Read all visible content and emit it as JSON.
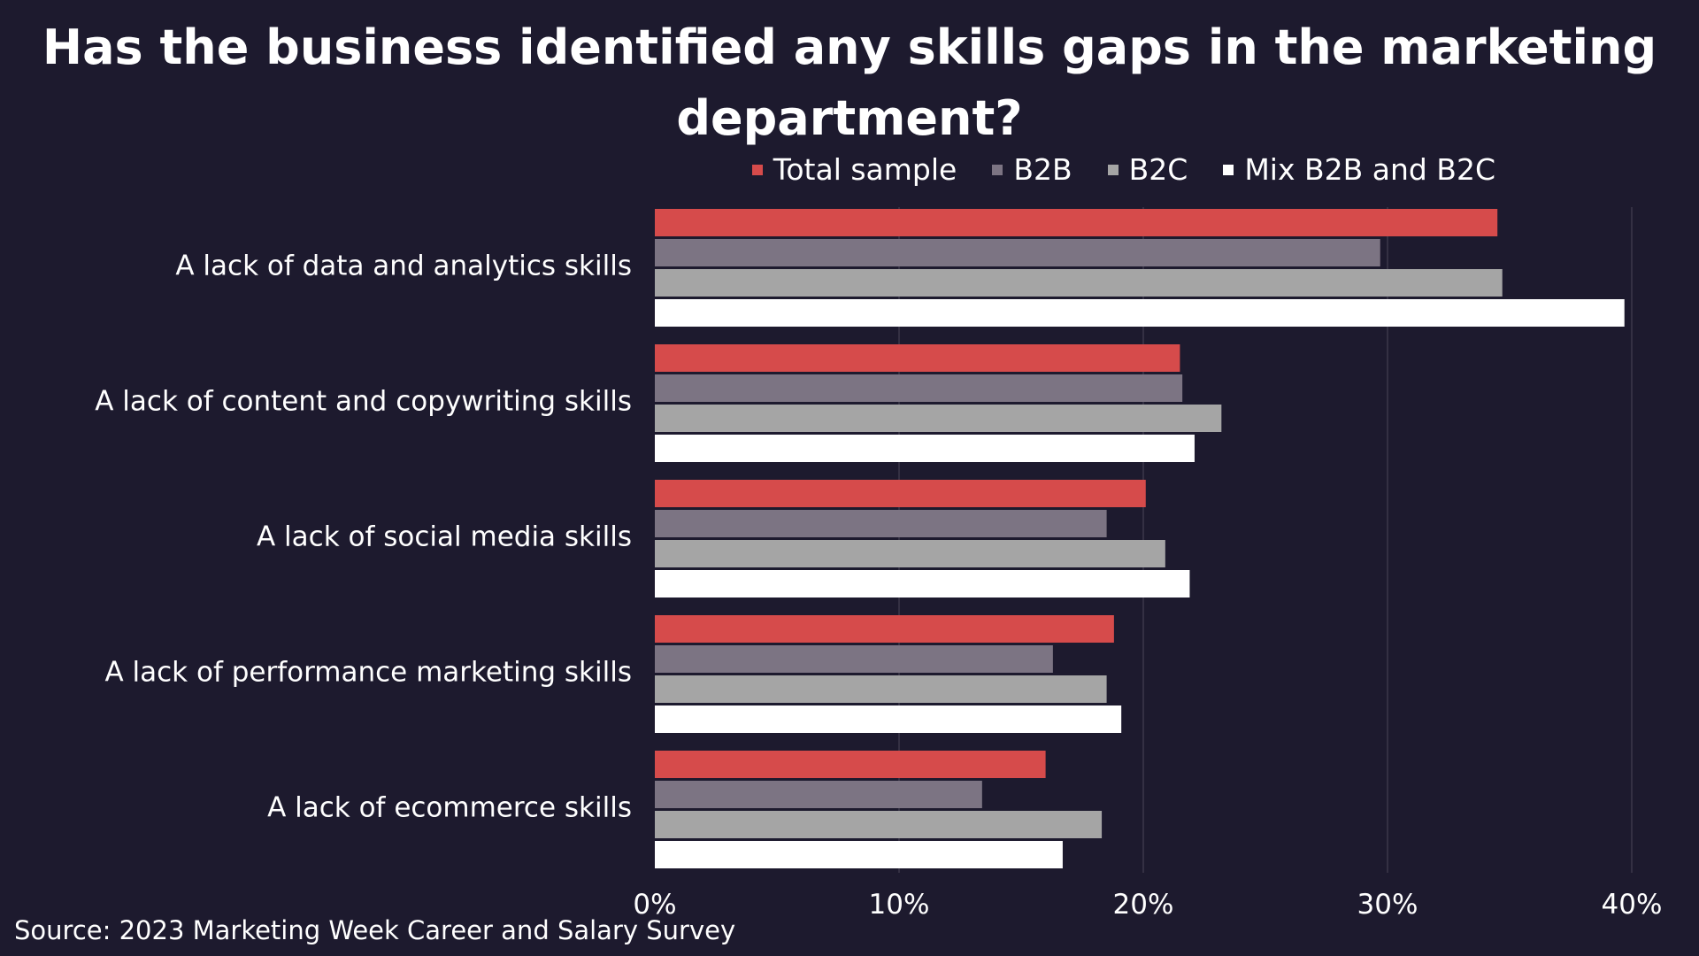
{
  "chart_data": {
    "type": "bar",
    "orientation": "horizontal",
    "title": "Has the business identified any skills gaps in the marketing department?",
    "categories": [
      "A lack of data and analytics skills",
      "A lack of content and copywriting skills",
      "A lack of social media skills",
      "A lack of performance marketing skills",
      "A lack of ecommerce skills"
    ],
    "series": [
      {
        "name": "Total sample",
        "color": "#d64b4b",
        "values": [
          34.5,
          21.5,
          20.1,
          18.8,
          16.0
        ]
      },
      {
        "name": "B2B",
        "color": "#7c7483",
        "values": [
          29.7,
          21.6,
          18.5,
          16.3,
          13.4
        ]
      },
      {
        "name": "B2C",
        "color": "#a5a5a5",
        "values": [
          34.7,
          23.2,
          20.9,
          18.5,
          18.3
        ]
      },
      {
        "name": "Mix B2B and B2C",
        "color": "#ffffff",
        "values": [
          39.7,
          22.1,
          21.9,
          19.1,
          16.7
        ]
      }
    ],
    "xlim": [
      0,
      40
    ],
    "x_ticks": [
      "0%",
      "10%",
      "20%",
      "30%",
      "40%"
    ],
    "x_tick_values": [
      0,
      10,
      20,
      30,
      40
    ],
    "grid": true,
    "legend_position": "top-right"
  },
  "source": "Source: 2023 Marketing Week Career and Salary Survey",
  "colors": {
    "background": "#1d1a2e",
    "gridline": "#4a4658",
    "text": "#ffffff"
  }
}
